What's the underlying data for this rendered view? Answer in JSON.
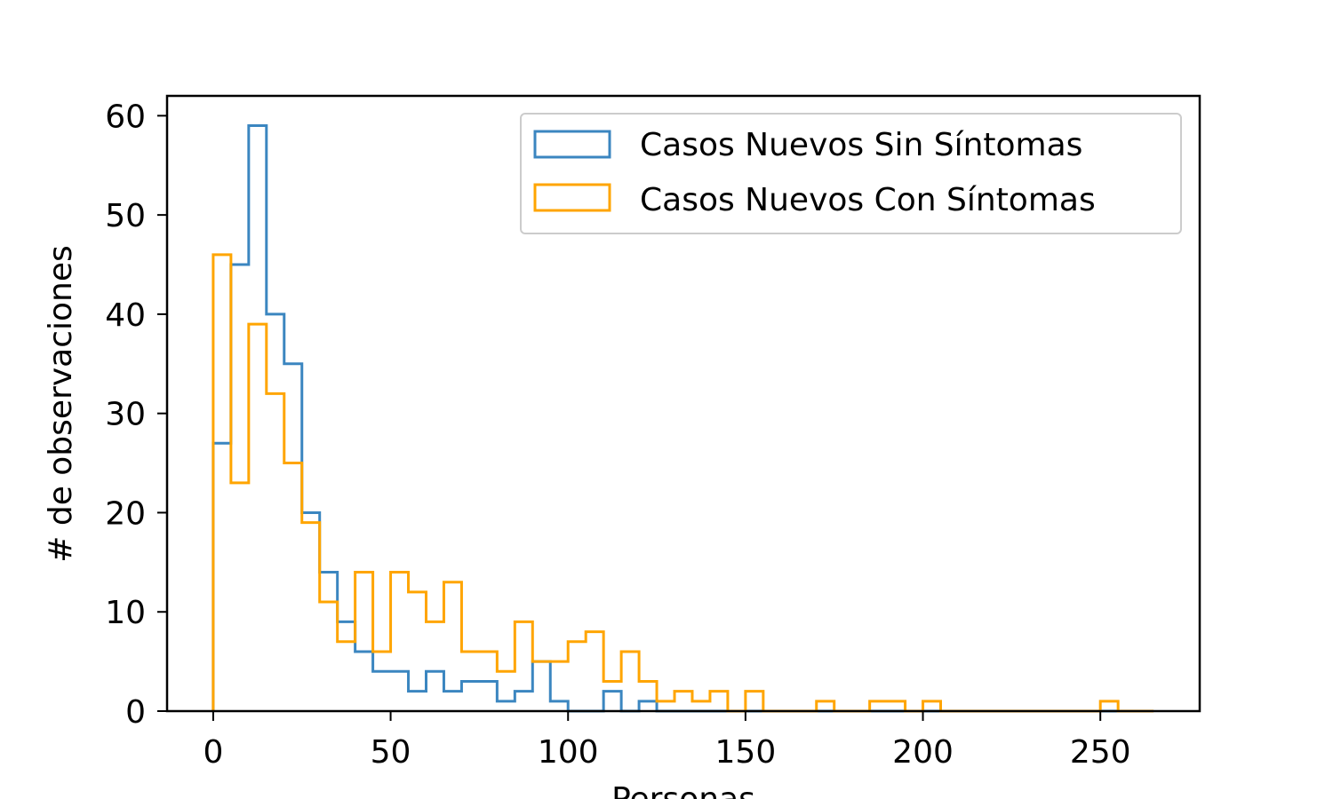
{
  "chart_data": {
    "type": "histogram",
    "xlabel": "Personas",
    "ylabel": "# de observaciones",
    "xlim": [
      -13,
      278
    ],
    "ylim": [
      0,
      62
    ],
    "xticks": [
      0,
      50,
      100,
      150,
      200,
      250
    ],
    "yticks": [
      0,
      10,
      20,
      30,
      40,
      50,
      60
    ],
    "grid": false,
    "legend_position": "top-right",
    "bin_edges": [
      0,
      5,
      10,
      15,
      20,
      25,
      30,
      35,
      40,
      45,
      50,
      55,
      60,
      65,
      70,
      75,
      80,
      85,
      90,
      95,
      100,
      105,
      110,
      115,
      120,
      125,
      130,
      135,
      140,
      145,
      150,
      155,
      160,
      165,
      170,
      175,
      180,
      185,
      190,
      195,
      200,
      205,
      210,
      215,
      220,
      225,
      230,
      235,
      240,
      245,
      250,
      255,
      260,
      265
    ],
    "series": [
      {
        "name": "Casos Nuevos Sin Síntomas",
        "color": "#3b86c0",
        "values": [
          27,
          45,
          59,
          40,
          35,
          20,
          14,
          9,
          6,
          4,
          4,
          2,
          4,
          2,
          3,
          3,
          1,
          2,
          5,
          1,
          0,
          0,
          2,
          0,
          1,
          0,
          0,
          0,
          0,
          0,
          0,
          0,
          0,
          0,
          0,
          0,
          0,
          0,
          0,
          0,
          0,
          0,
          0,
          0,
          0,
          0,
          0,
          0,
          0,
          0,
          0,
          0,
          0
        ]
      },
      {
        "name": "Casos Nuevos Con Síntomas",
        "color": "#ffa500",
        "values": [
          46,
          23,
          39,
          32,
          25,
          19,
          11,
          7,
          14,
          6,
          14,
          12,
          9,
          13,
          6,
          6,
          4,
          9,
          5,
          5,
          7,
          8,
          3,
          6,
          3,
          1,
          2,
          1,
          2,
          0,
          2,
          0,
          0,
          0,
          1,
          0,
          0,
          1,
          1,
          0,
          1,
          0,
          0,
          0,
          0,
          0,
          0,
          0,
          0,
          0,
          1,
          0,
          0
        ]
      }
    ]
  }
}
